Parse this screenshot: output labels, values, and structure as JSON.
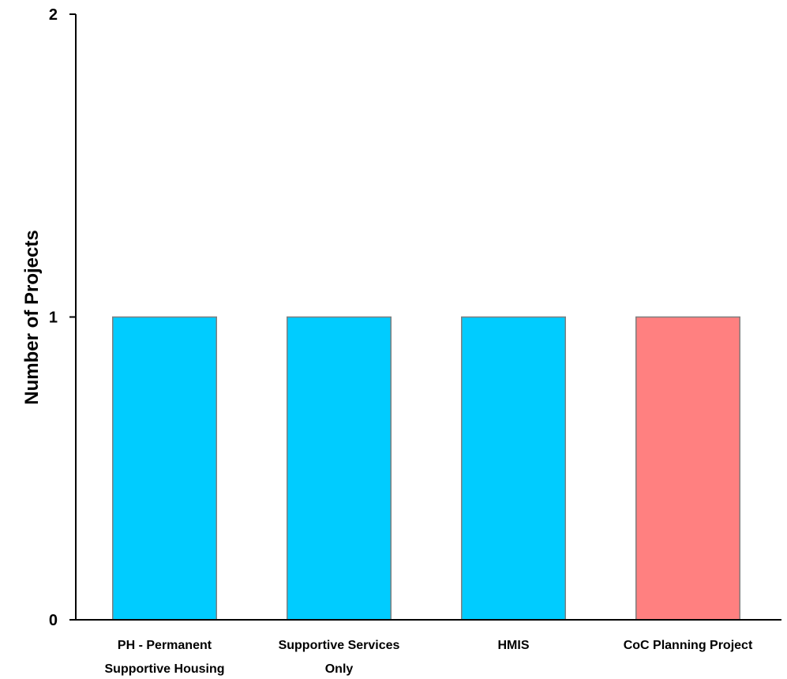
{
  "chart_data": {
    "type": "bar",
    "title": "",
    "xlabel": "",
    "ylabel": "Number of Projects",
    "ylim": [
      0,
      2
    ],
    "yticks": [
      0,
      1,
      2
    ],
    "grid": false,
    "categories": [
      "PH - Permanent Supportive Housing",
      "Supportive Services Only",
      "HMIS",
      "CoC Planning Project"
    ],
    "category_label_lines": [
      [
        "PH - Permanent",
        "Supportive Housing"
      ],
      [
        "Supportive Services",
        "Only"
      ],
      [
        "HMIS"
      ],
      [
        "CoC Planning Project"
      ]
    ],
    "values": [
      1,
      1,
      1,
      1
    ],
    "bar_colors": [
      "#00ccff",
      "#00ccff",
      "#00ccff",
      "#ff8080"
    ]
  }
}
